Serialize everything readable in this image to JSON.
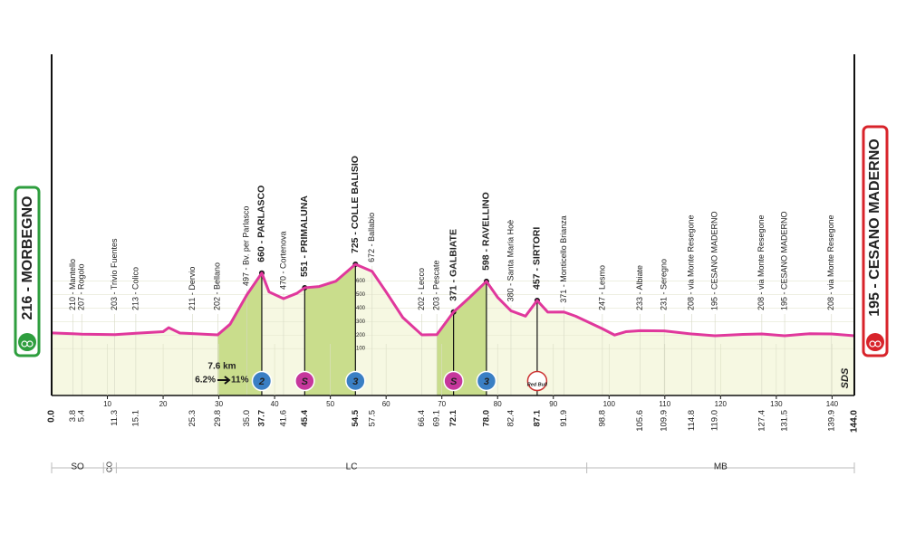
{
  "chart_data": {
    "type": "profile",
    "start": {
      "km": {
        "value": 0,
        "label": "0.0"
      },
      "label": "216 - MORBEGNO",
      "color": "#2e9e3e"
    },
    "finish": {
      "km": {
        "value": 144,
        "label": "144.0"
      },
      "label": "195 - CESANO MADERNO",
      "color": "#d8232a"
    },
    "x": [
      0,
      3.8,
      5.4,
      11.3,
      15.1,
      20,
      21,
      23,
      25.3,
      28,
      29.8,
      32,
      35,
      37.7,
      39,
      41.6,
      44,
      45.4,
      48,
      51,
      54.5,
      57.5,
      60,
      63,
      66.4,
      69.1,
      72.1,
      75,
      78,
      80,
      82.4,
      85,
      87.1,
      89,
      91.9,
      94,
      98.8,
      101,
      103,
      105.6,
      109.9,
      114.8,
      119,
      124,
      127.4,
      131.5,
      136,
      139.9,
      144
    ],
    "values": [
      216,
      210,
      207,
      203,
      213,
      225,
      255,
      215,
      211,
      205,
      202,
      280,
      497,
      660,
      520,
      470,
      510,
      551,
      560,
      600,
      725,
      672,
      520,
      330,
      202,
      203,
      371,
      480,
      598,
      480,
      380,
      340,
      457,
      370,
      371,
      340,
      247,
      200,
      225,
      233,
      231,
      208,
      195,
      205,
      208,
      195,
      210,
      208,
      195
    ],
    "color": "#e0389c",
    "fill": "#f6f8e2",
    "xlim": [
      0,
      144
    ],
    "xticks": [
      10,
      20,
      30,
      40,
      50,
      60,
      70,
      80,
      90,
      100,
      110,
      120,
      130,
      140
    ],
    "ylim": [
      -248,
      2282
    ],
    "yticks": [
      100,
      200,
      300,
      400,
      500,
      600
    ],
    "grid": true,
    "waypoints": [
      {
        "km": 3.8,
        "label": "210 - Mantello"
      },
      {
        "km": 5.4,
        "label": "207 - Rogolo"
      },
      {
        "km": 11.3,
        "label": "203 - Trivio Fuentes"
      },
      {
        "km": 15.1,
        "label": "213 - Colico"
      },
      {
        "km": 25.3,
        "label": "211 - Dervio"
      },
      {
        "km": 29.8,
        "label": "202 - Bellano"
      },
      {
        "km": {
          "value": 35,
          "label": "35.0"
        },
        "label": "497 - Bv. per Parlasco"
      },
      {
        "km": 37.7,
        "label": "660 - PARLASCO",
        "bold": true
      },
      {
        "km": 41.6,
        "label": "470 - Cortenova"
      },
      {
        "km": 45.4,
        "label": "551 - PRIMALUNA",
        "bold": true
      },
      {
        "km": 54.5,
        "label": "725 - COLLE BALISIO",
        "bold": true
      },
      {
        "km": 57.5,
        "label": "672 - Ballabio"
      },
      {
        "km": 66.4,
        "label": "202 - Lecco"
      },
      {
        "km": 69.1,
        "label": "203 - Pescate"
      },
      {
        "km": 72.1,
        "label": "371 - GALBIATE",
        "bold": true
      },
      {
        "km": {
          "value": 78,
          "label": "78.0"
        },
        "label": "598 - RAVELLINO",
        "bold": true
      },
      {
        "km": 82.4,
        "label": "380 - Santa Maria Hoè"
      },
      {
        "km": 87.1,
        "label": "457 - SIRTORI",
        "bold": true
      },
      {
        "km": 91.9,
        "label": "371 - Monticello Brianza"
      },
      {
        "km": 98.8,
        "label": "247 - Lesmo"
      },
      {
        "km": 105.6,
        "label": "233 - Albiate"
      },
      {
        "km": 109.9,
        "label": "231 - Seregno"
      },
      {
        "km": 114.8,
        "label": "208 - via Monte Resegone"
      },
      {
        "km": {
          "value": 119,
          "label": "119.0"
        },
        "label": "195 - CESANO MADERNO"
      },
      {
        "km": 127.4,
        "label": "208 - via Monte Resegone"
      },
      {
        "km": 131.5,
        "label": "195 - CESANO MADERNO"
      },
      {
        "km": 139.9,
        "label": "208 - via Monte Resegone"
      }
    ],
    "climbs": [
      {
        "from": 29.8,
        "to": 37.7
      },
      {
        "from": 45.4,
        "to": 54.5
      },
      {
        "from": 69.1,
        "to": 78
      }
    ],
    "climb_color": "#c9dd8c",
    "markers": [
      {
        "km": 37.7,
        "label": "2",
        "kind": "climb"
      },
      {
        "km": 45.4,
        "label": "S",
        "kind": "sprint"
      },
      {
        "km": 54.5,
        "label": "3",
        "kind": "climb"
      },
      {
        "km": 72.1,
        "label": "S",
        "kind": "sprint"
      },
      {
        "km": 78,
        "label": "3",
        "kind": "climb"
      },
      {
        "km": 87.1,
        "label": "Red Bull",
        "kind": "bonus"
      }
    ],
    "climb_info": {
      "length": "7.6 km",
      "avg": "6.2%",
      "max": "11%"
    },
    "regions": [
      {
        "label": "SO",
        "from": 0,
        "to": 9.3
      },
      {
        "label": "CO",
        "from": 9.3,
        "to": 11.6
      },
      {
        "label": "LC",
        "from": 11.6,
        "to": 96
      },
      {
        "label": "MB",
        "from": 96,
        "to": 144
      }
    ],
    "logo": "SDS"
  }
}
